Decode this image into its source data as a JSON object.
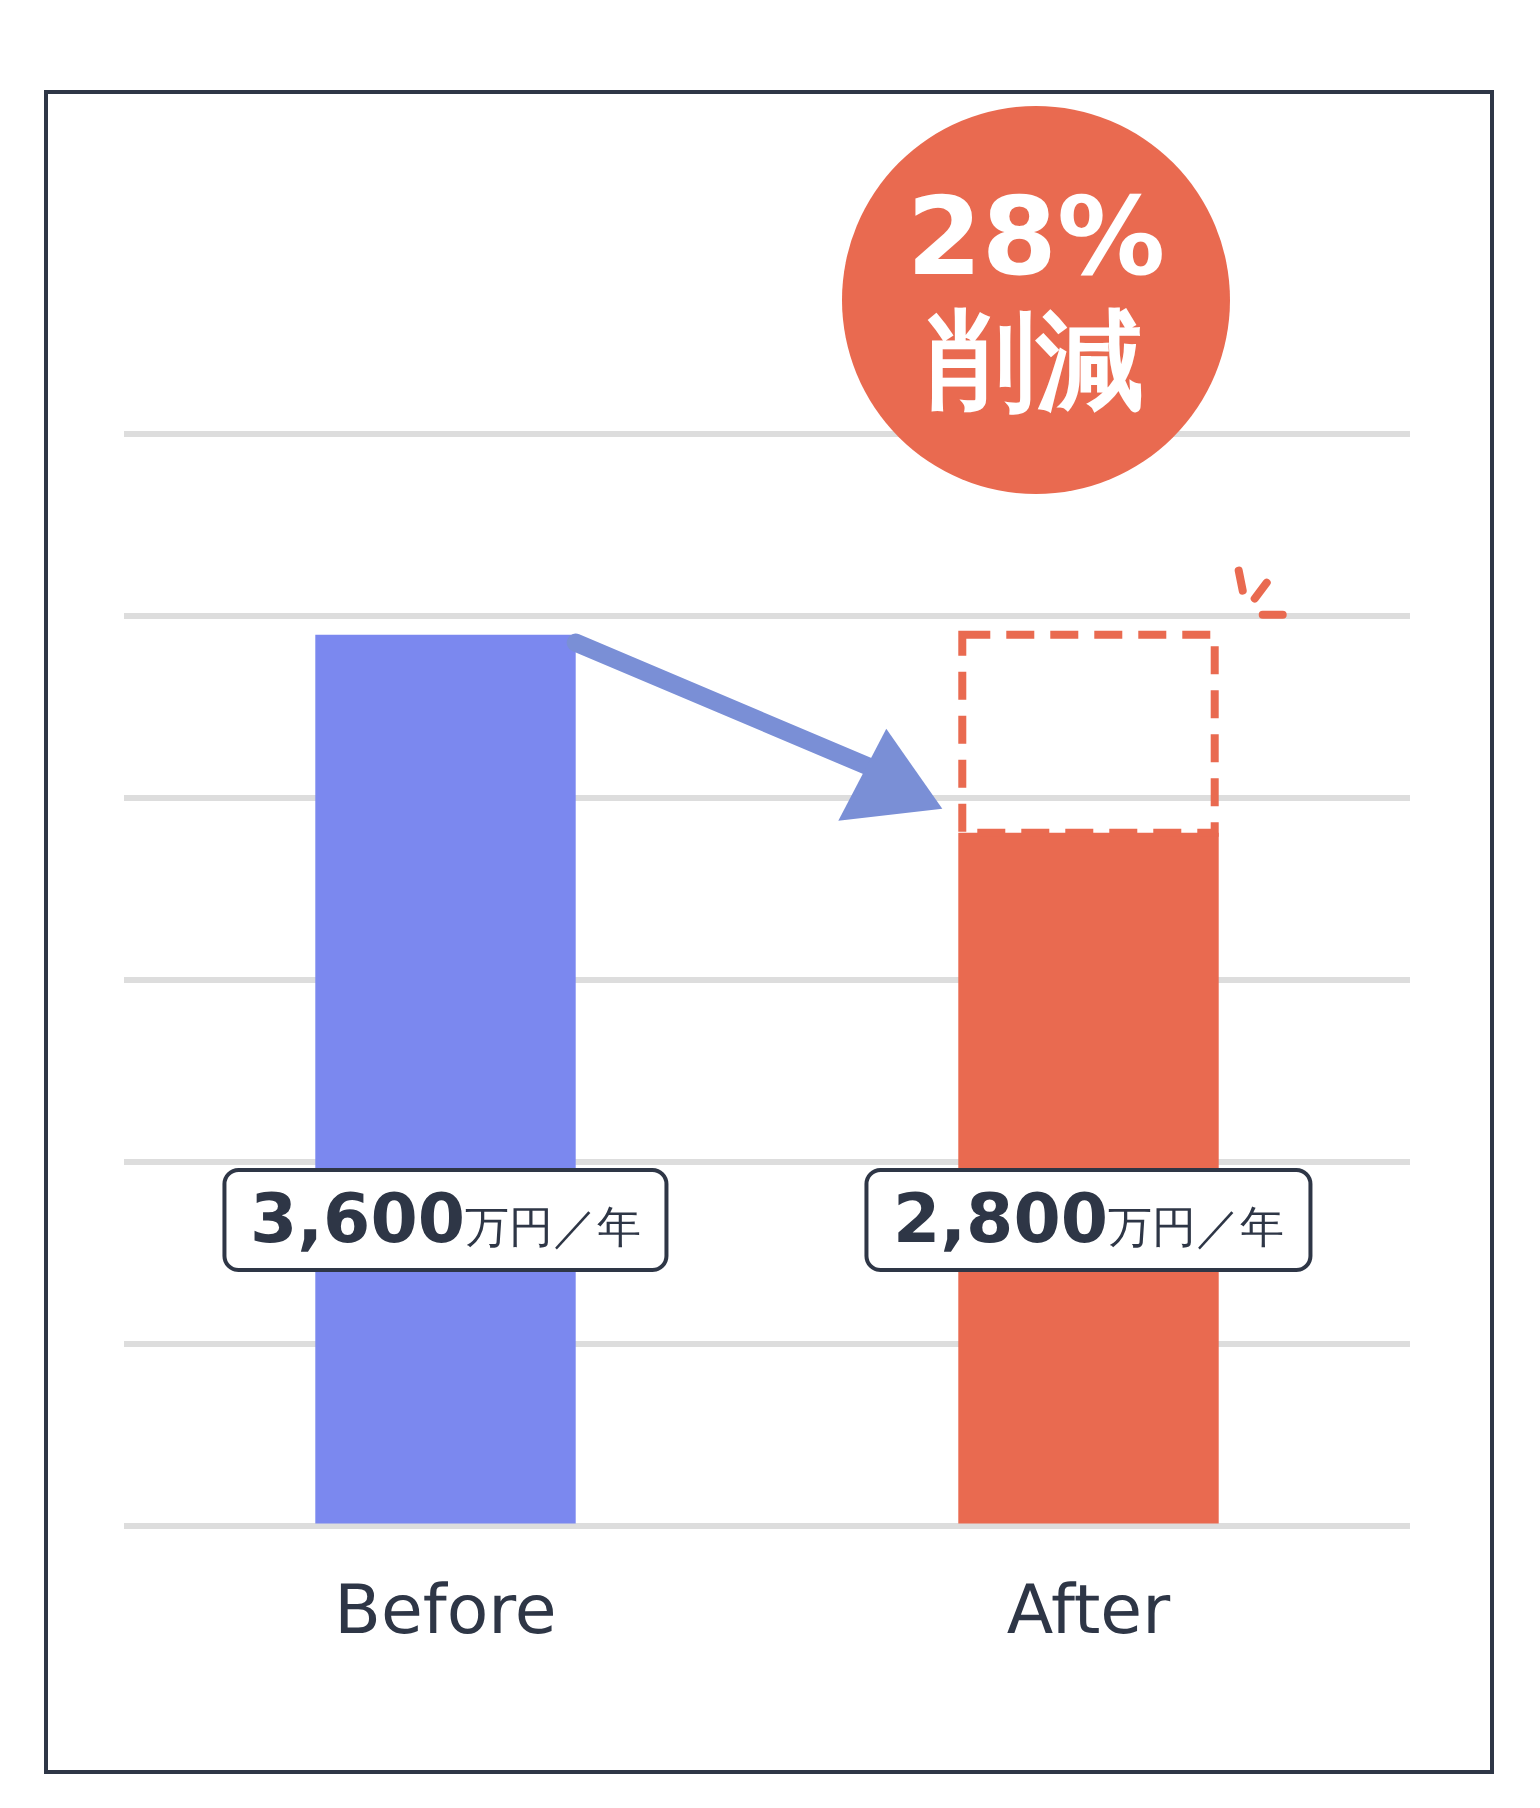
{
  "chart_data": {
    "type": "bar",
    "categories": [
      "Before",
      "After"
    ],
    "values": [
      3600,
      2800
    ],
    "colors": [
      "#7b88ef",
      "#e96a50"
    ],
    "value_labels": [
      "3,600万円／年",
      "2,800万円／年"
    ],
    "ylim": [
      0,
      4410
    ],
    "yticks": [
      {
        "value": 0,
        "label": null
      },
      {
        "value": 735,
        "label": null
      },
      {
        "value": 1470,
        "label": null
      },
      {
        "value": 2205,
        "label": null
      },
      {
        "value": 2940,
        "label": null
      },
      {
        "value": 3675,
        "label": null
      },
      {
        "value": 4410,
        "label": null
      }
    ],
    "tick_labels": "x",
    "grid": "y",
    "legend": false,
    "annotations": [
      "28%\n削減"
    ]
  }
}
